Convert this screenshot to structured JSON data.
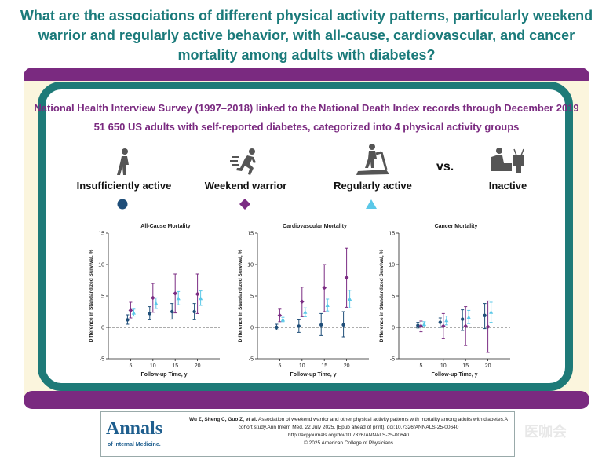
{
  "title": "What are the associations of different physical activity patterns, particularly weekend warrior and regularly active behavior, with all-cause, cardiovascular, and cancer mortality among adults with diabetes?",
  "subtitle1": "National Health Interview Survey (1997–2018) linked to the National Death Index records through December 2019",
  "subtitle2": "51 650 US adults with self-reported diabetes, categorized into 4 physical activity groups",
  "groups": [
    {
      "label": "Insufficiently active",
      "icon": "walking-person-icon",
      "color": "#1f4e79",
      "marker": "circle"
    },
    {
      "label": "Weekend warrior",
      "icon": "running-person-icon",
      "color": "#7b2c83",
      "marker": "diamond"
    },
    {
      "label": "Regularly active",
      "icon": "treadmill-icon",
      "color": "#5bc8e8",
      "marker": "triangle"
    },
    {
      "label": "Inactive",
      "icon": "tv-couch-icon"
    }
  ],
  "vs_label": "vs.",
  "chart_data": [
    {
      "type": "scatter",
      "title": "All-Cause Mortality",
      "xlabel": "Follow-up Time, y",
      "ylabel": "Difference in Standardized Survival, %",
      "xlim": [
        0,
        25
      ],
      "ylim": [
        -5,
        15
      ],
      "x": [
        5,
        10,
        15,
        20
      ],
      "yticks": [
        -5,
        0,
        5,
        10,
        15
      ],
      "series": [
        {
          "name": "Insufficiently active",
          "values": [
            1.2,
            2.2,
            2.5,
            2.5
          ],
          "lower": [
            0.5,
            1.2,
            1.3,
            1.2
          ],
          "upper": [
            2.0,
            3.3,
            3.8,
            3.8
          ]
        },
        {
          "name": "Weekend warrior",
          "values": [
            2.7,
            4.7,
            5.4,
            5.3
          ],
          "lower": [
            1.5,
            2.4,
            2.3,
            2.2
          ],
          "upper": [
            4.0,
            7.0,
            8.5,
            8.5
          ]
        },
        {
          "name": "Regularly active",
          "values": [
            2.3,
            3.8,
            4.6,
            4.6
          ],
          "lower": [
            1.8,
            3.0,
            3.6,
            3.5
          ],
          "upper": [
            2.9,
            4.7,
            5.7,
            5.8
          ]
        }
      ]
    },
    {
      "type": "scatter",
      "title": "Cardiovascular Mortality",
      "xlabel": "Follow-up Time, y",
      "ylabel": "Difference in Standardized Survival, %",
      "xlim": [
        0,
        25
      ],
      "ylim": [
        -5,
        15
      ],
      "x": [
        5,
        10,
        15,
        20
      ],
      "yticks": [
        -5,
        0,
        5,
        10,
        15
      ],
      "series": [
        {
          "name": "Insufficiently active",
          "values": [
            0.0,
            0.2,
            0.4,
            0.4
          ],
          "lower": [
            -0.4,
            -0.8,
            -1.3,
            -1.5
          ],
          "upper": [
            0.5,
            1.2,
            2.2,
            2.5
          ]
        },
        {
          "name": "Weekend warrior",
          "values": [
            1.9,
            4.1,
            6.3,
            7.9
          ],
          "lower": [
            0.9,
            1.7,
            2.5,
            3.2
          ],
          "upper": [
            2.9,
            6.4,
            10.0,
            12.6
          ]
        },
        {
          "name": "Regularly active",
          "values": [
            1.2,
            2.4,
            3.5,
            4.5
          ],
          "lower": [
            0.9,
            1.7,
            2.6,
            3.1
          ],
          "upper": [
            1.6,
            3.1,
            4.5,
            5.9
          ]
        }
      ]
    },
    {
      "type": "scatter",
      "title": "Cancer Mortality",
      "xlabel": "Follow-up Time, y",
      "ylabel": "Difference in Standardized Survival, %",
      "xlim": [
        0,
        25
      ],
      "ylim": [
        -5,
        15
      ],
      "x": [
        5,
        10,
        15,
        20
      ],
      "yticks": [
        -5,
        0,
        5,
        10,
        15
      ],
      "series": [
        {
          "name": "Insufficiently active",
          "values": [
            0.3,
            0.8,
            1.3,
            1.9
          ],
          "lower": [
            -0.1,
            0.0,
            -0.5,
            -0.2
          ],
          "upper": [
            0.8,
            1.5,
            2.8,
            3.8
          ]
        },
        {
          "name": "Weekend warrior",
          "values": [
            0.2,
            0.2,
            0.2,
            0.1
          ],
          "lower": [
            -0.7,
            -1.8,
            -2.9,
            -4.0
          ],
          "upper": [
            1.0,
            2.2,
            3.3,
            4.2
          ]
        },
        {
          "name": "Regularly active",
          "values": [
            0.5,
            1.1,
            1.6,
            2.4
          ],
          "lower": [
            0.1,
            0.4,
            0.6,
            0.8
          ],
          "upper": [
            0.9,
            1.8,
            2.7,
            4.0
          ]
        }
      ]
    }
  ],
  "footer": {
    "logo_main": "Annals",
    "logo_sub": "of Internal Medicine.",
    "citation_authors": "Wu Z, Sheng C, Guo Z, et al.",
    "citation_text": "Association of weekend warrior and other physical activity patterns with mortality among adults with diabetes.A cohort study.Ann Intern Med. 22 July 2025. [Epub ahead of print]. doi:10.7326/ANNALS-25-00640",
    "url": "http://acpjournals.org/doi/10.7326/ANNALS-25-00640",
    "copyright": "© 2025 American College of Physicians"
  },
  "watermark": "医咖会"
}
